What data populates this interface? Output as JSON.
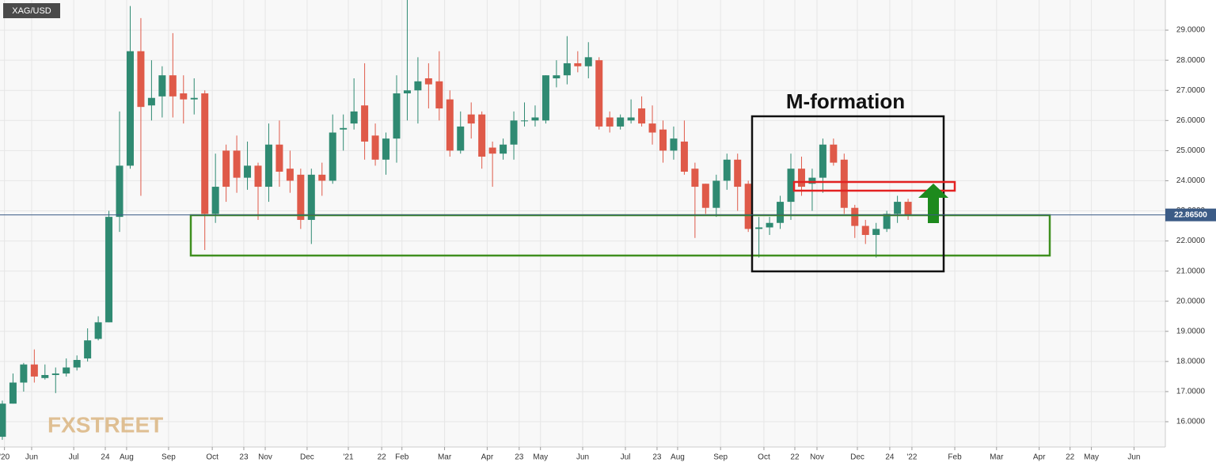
{
  "chart_data": {
    "type": "candlestick",
    "title": "XAG/USD",
    "annotation": "M-formation",
    "watermark": "FXSTREET",
    "up_color": "#2f8a72",
    "down_color": "#df5a49",
    "grid": true,
    "ylim": [
      15.16,
      30.0
    ],
    "xlim": [
      -0.22,
      109.14
    ],
    "yticks": [
      {
        "value": 16,
        "label": "16.0000"
      },
      {
        "value": 17,
        "label": "17.0000"
      },
      {
        "value": 18,
        "label": "18.0000"
      },
      {
        "value": 19,
        "label": "19.0000"
      },
      {
        "value": 20,
        "label": "20.0000"
      },
      {
        "value": 21,
        "label": "21.0000"
      },
      {
        "value": 22,
        "label": "22.0000"
      },
      {
        "value": 23,
        "label": "23.0000"
      },
      {
        "value": 24,
        "label": "24.0000"
      },
      {
        "value": 25,
        "label": "25.0000"
      },
      {
        "value": 26,
        "label": "26.0000"
      },
      {
        "value": 27,
        "label": "27.0000"
      },
      {
        "value": 28,
        "label": "28.0000"
      },
      {
        "value": 29,
        "label": "29.0000"
      }
    ],
    "xticks": [
      {
        "value": 0.2,
        "label": "'20"
      },
      {
        "value": 2.75,
        "label": "Jun"
      },
      {
        "value": 6.7,
        "label": "Jul"
      },
      {
        "value": 9.66,
        "label": "24"
      },
      {
        "value": 11.66,
        "label": "Aug"
      },
      {
        "value": 15.6,
        "label": "Sep"
      },
      {
        "value": 19.7,
        "label": "Oct"
      },
      {
        "value": 22.66,
        "label": "23"
      },
      {
        "value": 24.67,
        "label": "Nov"
      },
      {
        "value": 28.6,
        "label": "Dec"
      },
      {
        "value": 32.47,
        "label": "'21"
      },
      {
        "value": 35.6,
        "label": "22"
      },
      {
        "value": 37.5,
        "label": "Feb"
      },
      {
        "value": 41.5,
        "label": "Mar"
      },
      {
        "value": 45.5,
        "label": "Apr"
      },
      {
        "value": 48.5,
        "label": "23"
      },
      {
        "value": 50.5,
        "label": "May"
      },
      {
        "value": 54.46,
        "label": "Jun"
      },
      {
        "value": 58.47,
        "label": "Jul"
      },
      {
        "value": 61.44,
        "label": "23"
      },
      {
        "value": 63.37,
        "label": "Aug"
      },
      {
        "value": 67.4,
        "label": "Sep"
      },
      {
        "value": 71.47,
        "label": "Oct"
      },
      {
        "value": 74.37,
        "label": "22"
      },
      {
        "value": 76.45,
        "label": "Nov"
      },
      {
        "value": 80.24,
        "label": "Dec"
      },
      {
        "value": 83.28,
        "label": "24"
      },
      {
        "value": 85.36,
        "label": "'22"
      },
      {
        "value": 89.38,
        "label": "Feb"
      },
      {
        "value": 93.3,
        "label": "Mar"
      },
      {
        "value": 97.3,
        "label": "Apr"
      },
      {
        "value": 100.2,
        "label": "22"
      },
      {
        "value": 102.2,
        "label": "May"
      },
      {
        "value": 106.2,
        "label": "Jun"
      }
    ],
    "price_line": {
      "value": 22.865,
      "label": "22.86500",
      "color": "#3b5b86"
    },
    "open": [
      15.5,
      16.6,
      17.3,
      17.9,
      17.45,
      17.55,
      17.6,
      17.8,
      18.1,
      18.75,
      19.3,
      22.8,
      24.5,
      28.3,
      26.5,
      26.8,
      27.5,
      26.9,
      26.7,
      26.9,
      22.9,
      25.0,
      25.0,
      24.1,
      24.5,
      23.8,
      25.2,
      24.4,
      24.2,
      22.7,
      24.2,
      24.0,
      25.7,
      25.9,
      26.5,
      25.5,
      24.7,
      25.4,
      26.9,
      27.0,
      27.4,
      27.3,
      26.7,
      25.0,
      26.2,
      26.2,
      25.1,
      24.9,
      25.2,
      26.0,
      26.0,
      26.0,
      27.4,
      27.5,
      27.9,
      27.8,
      28.0,
      26.1,
      25.8,
      26.0,
      26.4,
      25.9,
      25.7,
      25.0,
      25.3,
      24.4,
      23.9,
      23.1,
      24.0,
      24.7,
      23.9,
      22.4,
      22.45,
      22.6,
      23.3,
      24.4,
      23.9,
      24.1,
      25.2,
      24.7,
      23.1,
      22.5,
      22.2,
      22.4,
      22.9,
      23.3
    ],
    "high": [
      16.7,
      17.6,
      17.95,
      18.4,
      17.9,
      17.8,
      18.1,
      18.2,
      19.1,
      19.5,
      23.0,
      26.3,
      29.8,
      29.4,
      28.0,
      27.8,
      28.9,
      27.5,
      27.4,
      27.0,
      24.9,
      25.2,
      25.5,
      25.3,
      24.6,
      25.9,
      26.0,
      25.0,
      24.4,
      24.4,
      24.6,
      26.2,
      26.2,
      27.4,
      27.9,
      25.9,
      25.6,
      27.5,
      30.0,
      28.1,
      27.9,
      28.3,
      27.0,
      26.3,
      26.6,
      26.3,
      25.3,
      25.4,
      26.3,
      26.6,
      26.5,
      27.5,
      28.0,
      28.8,
      28.3,
      28.6,
      28.1,
      26.3,
      26.2,
      26.7,
      26.8,
      26.5,
      26.0,
      25.8,
      26.0,
      24.6,
      23.9,
      24.2,
      24.9,
      24.9,
      24.0,
      22.8,
      22.8,
      23.5,
      24.9,
      24.8,
      24.4,
      25.4,
      25.4,
      24.9,
      23.2,
      22.7,
      22.6,
      23.0,
      23.5,
      23.4
    ],
    "low": [
      15.4,
      16.6,
      17.0,
      17.3,
      17.4,
      16.95,
      17.5,
      17.7,
      18.0,
      18.7,
      19.3,
      22.3,
      24.4,
      23.5,
      26.0,
      26.1,
      26.1,
      25.9,
      26.2,
      21.7,
      22.6,
      23.3,
      23.6,
      23.7,
      22.7,
      23.3,
      23.8,
      23.6,
      22.4,
      21.9,
      23.5,
      23.9,
      25.0,
      25.7,
      24.7,
      24.5,
      24.2,
      24.6,
      26.0,
      25.9,
      26.4,
      26.0,
      24.8,
      24.9,
      25.4,
      24.4,
      23.8,
      24.7,
      24.7,
      25.8,
      25.8,
      25.9,
      27.1,
      27.2,
      27.6,
      27.4,
      25.7,
      25.6,
      25.7,
      25.9,
      25.8,
      25.2,
      24.6,
      24.7,
      24.2,
      22.1,
      22.9,
      22.8,
      23.7,
      23.0,
      22.3,
      21.45,
      22.2,
      22.4,
      22.7,
      23.5,
      23.0,
      23.6,
      24.5,
      22.9,
      22.1,
      21.9,
      21.45,
      22.3,
      22.6,
      22.7
    ],
    "close": [
      16.6,
      17.3,
      17.9,
      17.5,
      17.55,
      17.6,
      17.8,
      18.05,
      18.7,
      19.3,
      22.8,
      24.5,
      28.3,
      26.45,
      26.75,
      27.5,
      26.8,
      26.7,
      26.75,
      22.9,
      23.8,
      23.8,
      24.1,
      24.5,
      23.8,
      25.2,
      24.3,
      24.0,
      22.7,
      24.2,
      24.0,
      25.6,
      25.75,
      26.3,
      25.3,
      24.7,
      25.4,
      26.9,
      27.0,
      27.3,
      27.2,
      26.4,
      25.0,
      25.8,
      25.9,
      24.8,
      24.9,
      25.2,
      26.0,
      26.0,
      26.1,
      27.5,
      27.5,
      27.9,
      27.8,
      28.1,
      25.8,
      25.8,
      26.1,
      26.1,
      25.9,
      25.6,
      25.0,
      25.4,
      24.3,
      23.8,
      23.1,
      24.0,
      24.7,
      23.8,
      22.4,
      22.45,
      22.6,
      23.3,
      24.4,
      23.8,
      24.1,
      25.2,
      24.6,
      23.1,
      22.5,
      22.2,
      22.4,
      22.9,
      23.3,
      22.86
    ]
  }
}
